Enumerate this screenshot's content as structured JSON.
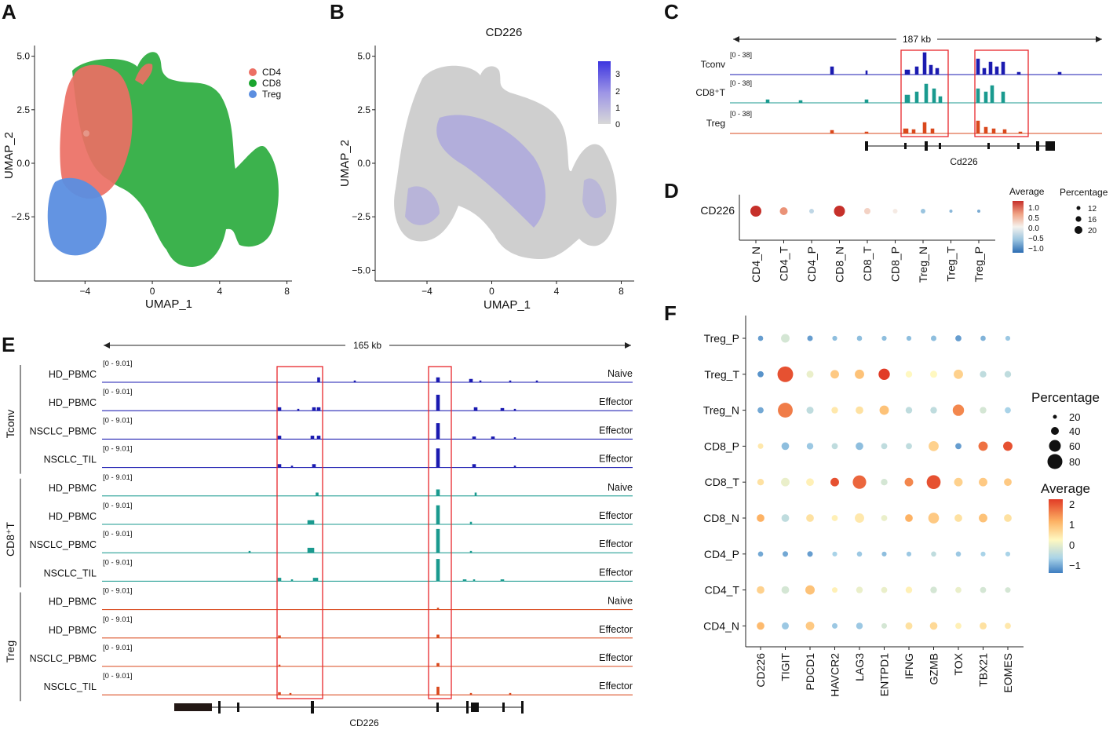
{
  "panels": {
    "A": "A",
    "B": "B",
    "C": "C",
    "D": "D",
    "E": "E",
    "F": "F"
  },
  "colors": {
    "cd4": "#ec6f64",
    "cd8": "#1aa52e",
    "treg": "#5b8ee0",
    "tconv": "#1a1ab0",
    "cd8t": "#1a9a8f",
    "tregTrack": "#d9481c",
    "box": "#e8262b",
    "feature_gray": "#c9c9c9",
    "feature_purple": "#3d35e0"
  },
  "chart_data": [
    {
      "type": "scatter",
      "id": "A",
      "title": "",
      "xlabel": "UMAP_1",
      "ylabel": "UMAP_2",
      "xticks": [
        -4,
        0,
        4,
        8
      ],
      "yticks": [
        5.0,
        2.5,
        0.0,
        -2.5
      ],
      "xtick_labels": [
        "−4",
        "0",
        "4",
        "8"
      ],
      "ytick_labels": [
        "5.0",
        "2.5",
        "0.0",
        "−2.5"
      ],
      "xlim": [
        -7,
        8.3
      ],
      "ylim": [
        -5.5,
        5.5
      ],
      "legend": [
        "CD4",
        "CD8",
        "Treg"
      ]
    },
    {
      "type": "scatter",
      "id": "B",
      "title": "CD226",
      "xlabel": "UMAP_1",
      "ylabel": "UMAP_2",
      "xticks": [
        -4,
        0,
        4,
        8
      ],
      "yticks": [
        5.0,
        2.5,
        0.0,
        -2.5,
        -5.0
      ],
      "xtick_labels": [
        "−4",
        "0",
        "4",
        "8"
      ],
      "ytick_labels": [
        "5.0",
        "2.5",
        "0.0",
        "−2.5",
        "−5.0"
      ],
      "xlim": [
        -7.2,
        8.8
      ],
      "ylim": [
        -5.5,
        5.5
      ],
      "colorbar_ticks": [
        "3",
        "2",
        "1",
        "0"
      ]
    },
    {
      "type": "area",
      "id": "C",
      "scale_label": "187 kb",
      "tracks": [
        {
          "name": "Tconv",
          "range": "[0 - 38]"
        },
        {
          "name": "CD8⁺T",
          "range": "[0 - 38]"
        },
        {
          "name": "Treg",
          "range": "[0 - 38]"
        }
      ],
      "gene": "Cd226"
    },
    {
      "type": "scatter",
      "id": "D",
      "row": "CD226",
      "categories": [
        "CD4_N",
        "CD4_T",
        "CD4_P",
        "CD8_N",
        "CD8_T",
        "CD8_P",
        "Treg_N",
        "Treg_T",
        "Treg_P"
      ],
      "average": [
        1.2,
        0.6,
        -0.3,
        1.2,
        0.2,
        0.05,
        -0.5,
        -0.6,
        -0.7
      ],
      "percentage": [
        20,
        16,
        12,
        20,
        14,
        12,
        12,
        10,
        10
      ],
      "average_title": "Average",
      "average_ticks": [
        "1.0",
        "0.5",
        "0.0",
        "−0.5",
        "−1.0"
      ],
      "percentage_title": "Percentage",
      "percentage_ticks": [
        "12",
        "16",
        "20"
      ]
    },
    {
      "type": "area",
      "id": "E",
      "scale_label": "165 kb",
      "groups": [
        {
          "name": "Tconv",
          "tracks": [
            {
              "name": "HD_PBMC",
              "range": "[0 - 9.01]",
              "state": "Naive"
            },
            {
              "name": "HD_PBMC",
              "range": "[0 - 9.01]",
              "state": "Effector"
            },
            {
              "name": "NSCLC_PBMC",
              "range": "[0 - 9.01]",
              "state": "Effector"
            },
            {
              "name": "NSCLC_TIL",
              "range": "[0 - 9.01]",
              "state": "Effector"
            }
          ]
        },
        {
          "name": "CD8⁺T",
          "tracks": [
            {
              "name": "HD_PBMC",
              "range": "[0 - 9.01]",
              "state": "Naive"
            },
            {
              "name": "HD_PBMC",
              "range": "[0 - 9.01]",
              "state": "Effector"
            },
            {
              "name": "NSCLC_PBMC",
              "range": "[0 - 9.01]",
              "state": "Effector"
            },
            {
              "name": "NSCLC_TIL",
              "range": "[0 - 9.01]",
              "state": "Effector"
            }
          ]
        },
        {
          "name": "Treg",
          "tracks": [
            {
              "name": "HD_PBMC",
              "range": "[0 - 9.01]",
              "state": "Naive"
            },
            {
              "name": "HD_PBMC",
              "range": "[0 - 9.01]",
              "state": "Effector"
            },
            {
              "name": "NSCLC_PBMC",
              "range": "[0 - 9.01]",
              "state": "Effector"
            },
            {
              "name": "NSCLC_TIL",
              "range": "[0 - 9.01]",
              "state": "Effector"
            }
          ]
        }
      ],
      "gene": "CD226"
    },
    {
      "type": "scatter",
      "id": "F",
      "genes": [
        "CD226",
        "TIGIT",
        "PDCD1",
        "HAVCR2",
        "LAG3",
        "ENTPD1",
        "IFNG",
        "GZMB",
        "TOX",
        "TBX21",
        "EOMES"
      ],
      "cell_types": [
        "Treg_P",
        "Treg_T",
        "Treg_N",
        "CD8_P",
        "CD8_T",
        "CD8_N",
        "CD4_P",
        "CD4_T",
        "CD4_N"
      ],
      "average": [
        [
          -0.9,
          -0.2,
          -0.9,
          -0.6,
          -0.6,
          -0.6,
          -0.6,
          -0.6,
          -0.9,
          -0.7,
          -0.5
        ],
        [
          -1.0,
          1.8,
          -0.1,
          0.6,
          0.7,
          2.0,
          0.0,
          0.0,
          0.5,
          -0.3,
          -0.3
        ],
        [
          -0.8,
          1.4,
          -0.3,
          0.2,
          0.3,
          0.7,
          -0.3,
          -0.3,
          1.3,
          -0.2,
          -0.4
        ],
        [
          0.2,
          -0.6,
          -0.5,
          -0.3,
          -0.6,
          -0.3,
          -0.3,
          0.5,
          -0.9,
          1.5,
          1.8
        ],
        [
          0.3,
          -0.1,
          0.1,
          1.8,
          1.6,
          -0.2,
          1.3,
          1.8,
          0.5,
          0.6,
          0.6
        ],
        [
          0.9,
          -0.3,
          0.3,
          0.1,
          0.2,
          -0.1,
          0.9,
          0.6,
          0.3,
          0.7,
          0.3
        ],
        [
          -0.8,
          -0.8,
          -0.9,
          -0.4,
          -0.5,
          -0.6,
          -0.5,
          -0.3,
          -0.5,
          -0.4,
          -0.4
        ],
        [
          0.5,
          -0.2,
          0.7,
          0.1,
          -0.1,
          -0.1,
          0.1,
          -0.2,
          -0.1,
          -0.2,
          -0.2
        ],
        [
          0.8,
          -0.5,
          0.6,
          -0.5,
          -0.5,
          -0.2,
          0.3,
          0.4,
          0.1,
          0.3,
          0.2
        ]
      ],
      "percentage": [
        [
          5,
          20,
          6,
          4,
          5,
          4,
          4,
          6,
          8,
          5,
          4
        ],
        [
          8,
          85,
          12,
          20,
          25,
          40,
          10,
          12,
          25,
          10,
          10
        ],
        [
          8,
          75,
          12,
          10,
          15,
          25,
          10,
          10,
          40,
          10,
          8
        ],
        [
          6,
          15,
          10,
          8,
          15,
          8,
          8,
          30,
          8,
          25,
          25
        ],
        [
          10,
          20,
          15,
          20,
          60,
          10,
          20,
          65,
          20,
          20,
          15
        ],
        [
          15,
          15,
          15,
          8,
          25,
          8,
          15,
          35,
          15,
          20,
          15
        ],
        [
          5,
          6,
          6,
          4,
          5,
          4,
          4,
          5,
          5,
          4,
          4
        ],
        [
          15,
          15,
          25,
          6,
          10,
          8,
          10,
          10,
          8,
          8,
          6
        ],
        [
          15,
          12,
          20,
          6,
          10,
          6,
          12,
          15,
          8,
          12,
          8
        ]
      ],
      "percentage_title": "Percentage",
      "percentage_ticks": [
        "20",
        "40",
        "60",
        "80"
      ],
      "average_title": "Average",
      "average_ticks": [
        "2",
        "1",
        "0",
        "−1"
      ]
    }
  ]
}
